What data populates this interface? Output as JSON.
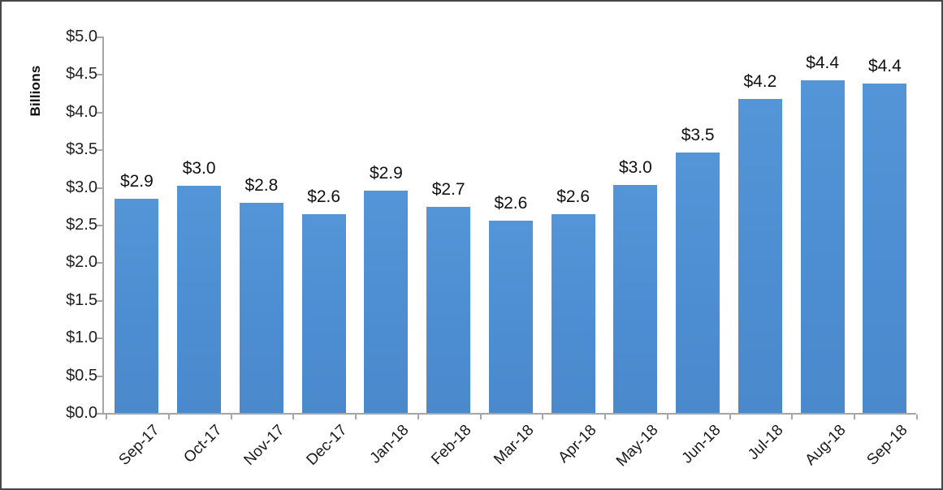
{
  "chart_data": {
    "type": "bar",
    "title": "",
    "xlabel": "",
    "ylabel": "Billions",
    "categories": [
      "Sep-17",
      "Oct-17",
      "Nov-17",
      "Dec-17",
      "Jan-18",
      "Feb-18",
      "Mar-18",
      "Apr-18",
      "May-18",
      "Jun-18",
      "Jul-18",
      "Aug-18",
      "Sep-18"
    ],
    "values": [
      2.85,
      3.02,
      2.79,
      2.64,
      2.95,
      2.74,
      2.55,
      2.64,
      3.03,
      3.46,
      4.17,
      4.42,
      4.38
    ],
    "bar_labels": [
      "$2.9",
      "$3.0",
      "$2.8",
      "$2.6",
      "$2.9",
      "$2.7",
      "$2.6",
      "$2.6",
      "$3.0",
      "$3.5",
      "$4.2",
      "$4.4",
      "$4.4"
    ],
    "y_tick_labels": [
      "$0.0",
      "$0.5",
      "$1.0",
      "$1.5",
      "$2.0",
      "$2.5",
      "$3.0",
      "$3.5",
      "$4.0",
      "$4.5",
      "$5.0"
    ],
    "ylim": [
      0,
      5
    ],
    "y_tick_step": 0.5,
    "grid": false,
    "legend": "none",
    "colors": {
      "bar": "#4D8DD1",
      "axis": "#A6A6A6",
      "text": "#1F1F1F",
      "frame_border": "#474747",
      "background": "#FFFFFF"
    }
  }
}
